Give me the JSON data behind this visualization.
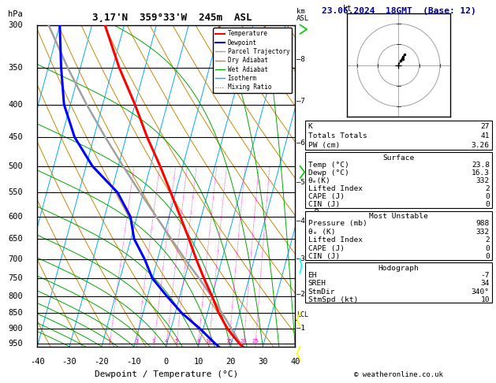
{
  "title_left": "3¸17'N  359°33'W  245m  ASL",
  "title_right": "23.06.2024  18GMT  (Base: 12)",
  "xlabel": "Dewpoint / Temperature (°C)",
  "ylabel_left": "hPa",
  "pressure_levels": [
    300,
    350,
    400,
    450,
    500,
    550,
    600,
    650,
    700,
    750,
    800,
    850,
    900,
    950
  ],
  "xmin": -40,
  "xmax": 40,
  "pmin": 300,
  "pmax": 960,
  "skew_factor": 27,
  "temp_profile": {
    "pressure": [
      960,
      950,
      900,
      850,
      800,
      750,
      700,
      650,
      600,
      550,
      500,
      450,
      400,
      350,
      300
    ],
    "temp": [
      23.8,
      22.5,
      17.5,
      13.5,
      10.0,
      6.0,
      2.0,
      -2.0,
      -6.5,
      -11.5,
      -17.0,
      -23.5,
      -30.0,
      -38.0,
      -46.0
    ]
  },
  "dewp_profile": {
    "pressure": [
      960,
      950,
      900,
      850,
      800,
      750,
      700,
      650,
      600,
      550,
      500,
      450,
      400,
      350,
      300
    ],
    "temp": [
      16.3,
      15.0,
      9.0,
      2.0,
      -4.0,
      -10.0,
      -14.0,
      -19.0,
      -22.0,
      -28.0,
      -38.0,
      -46.0,
      -52.0,
      -56.0,
      -60.0
    ]
  },
  "parcel_profile": {
    "pressure": [
      960,
      950,
      900,
      850,
      800,
      750,
      700,
      650,
      600,
      550,
      500,
      450,
      400,
      350,
      300
    ],
    "temp": [
      23.8,
      22.8,
      18.8,
      14.5,
      9.8,
      4.5,
      -1.5,
      -7.5,
      -14.0,
      -21.0,
      -28.5,
      -36.5,
      -45.0,
      -54.0,
      -63.5
    ]
  },
  "colors": {
    "temperature": "#ff0000",
    "dewpoint": "#0000ff",
    "parcel": "#a0a0a0",
    "dry_adiabat": "#cc8800",
    "wet_adiabat": "#00aa00",
    "isotherm": "#00aaff",
    "mixing_ratio": "#ff00bb",
    "background": "#ffffff",
    "grid": "#000000"
  },
  "mixing_ratio_lines": [
    1,
    2,
    3,
    4,
    5,
    8,
    10,
    15,
    20,
    25
  ],
  "lcl_pressure": 872,
  "km_labels": [
    1,
    2,
    3,
    4,
    5,
    6,
    7,
    8
  ],
  "km_pressures": [
    899,
    795,
    700,
    610,
    530,
    460,
    395,
    340
  ],
  "stats": {
    "K": 27,
    "Totals_Totals": 41,
    "PW_cm": "3.26",
    "Surface_Temp": "23.8",
    "Surface_Dewp": "16.3",
    "Surface_theta_e": 332,
    "Surface_LI": 2,
    "Surface_CAPE": 0,
    "Surface_CIN": 0,
    "MU_Pressure": 988,
    "MU_theta_e": 332,
    "MU_LI": 2,
    "MU_CAPE": 0,
    "MU_CIN": 0,
    "EH": -7,
    "SREH": 34,
    "StmDir": "340°",
    "StmSpd": 10
  },
  "wind_barb_pressures": [
    960,
    850,
    700,
    500,
    300
  ],
  "wind_barb_colors": [
    "#ffff00",
    "#ffff00",
    "#00ffff",
    "#00cc00",
    "#00cc00"
  ],
  "wind_barb_angles": [
    200,
    200,
    170,
    150,
    130
  ]
}
